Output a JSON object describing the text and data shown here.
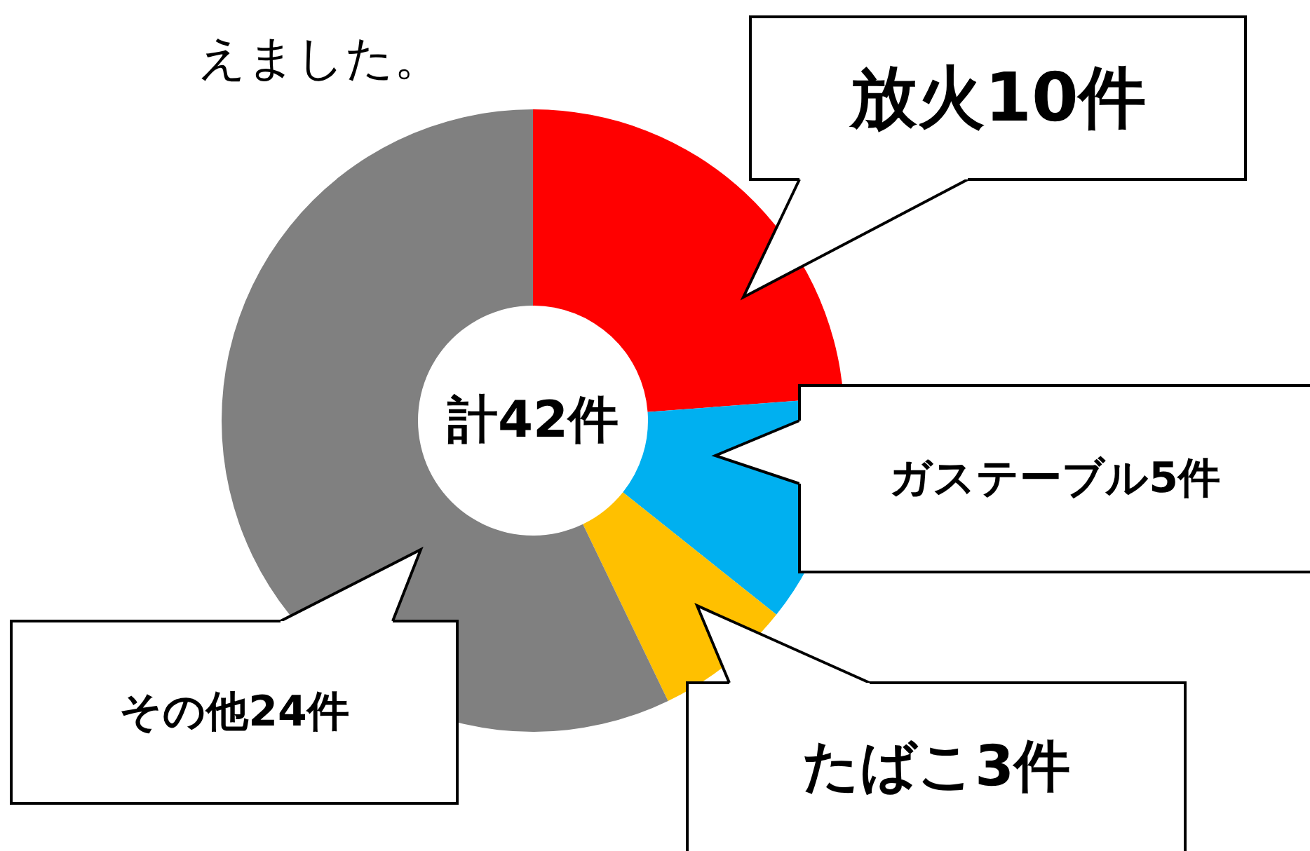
{
  "chart_data": {
    "type": "donut",
    "categories": [
      "放火10件",
      "ガステーブル5件",
      "たばこ3件",
      "その他24件"
    ],
    "values": [
      10,
      5,
      3,
      24
    ],
    "colors": [
      "#ff0000",
      "#00b0f0",
      "#ffc000",
      "#808080"
    ],
    "annotations": [
      "計42件",
      "えました。"
    ]
  }
}
